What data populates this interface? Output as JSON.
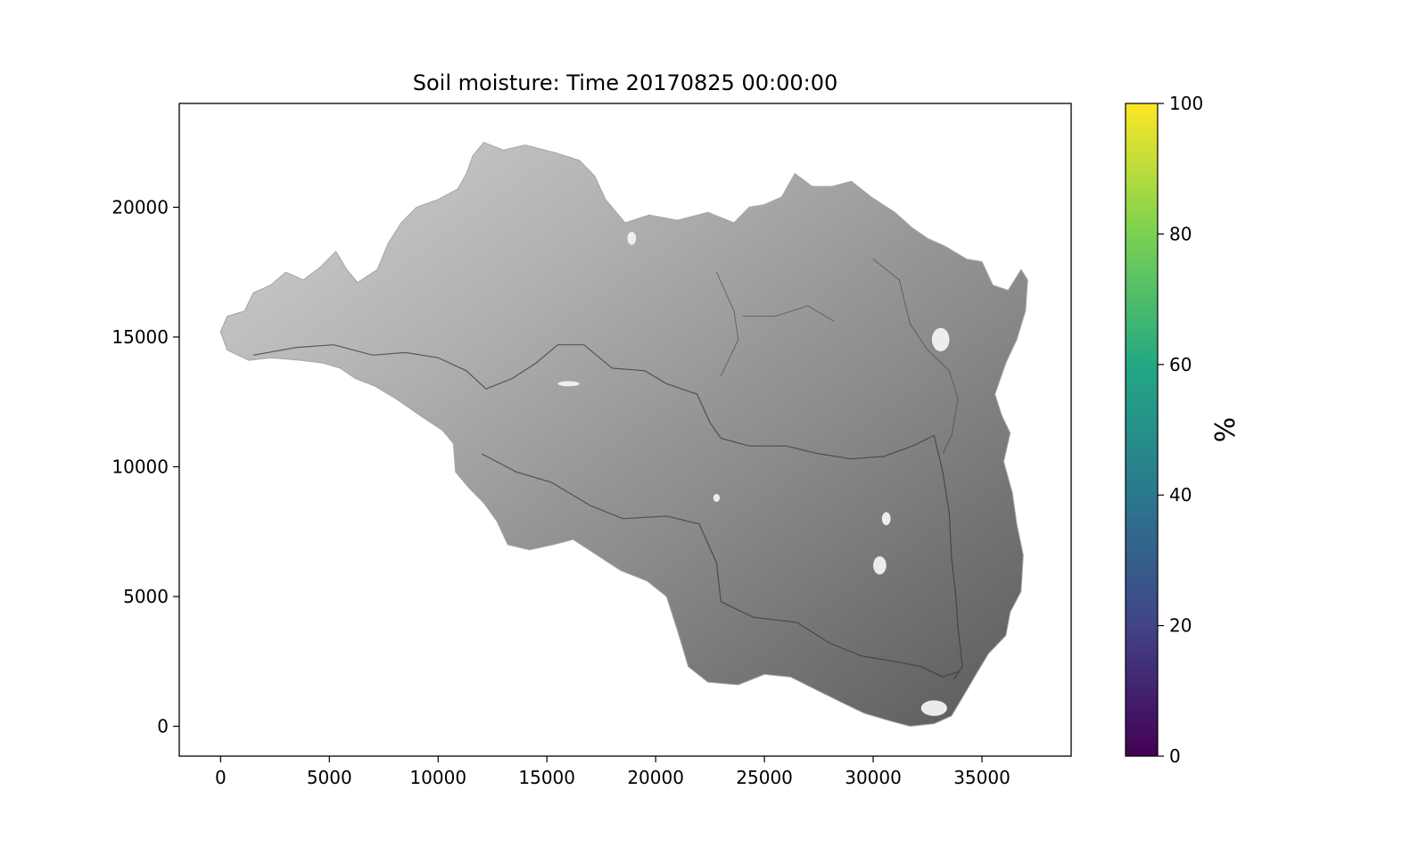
{
  "chart_data": {
    "type": "heatmap",
    "title": "Soil moisture: Time 20170825 00:00:00",
    "xlabel": "",
    "ylabel": "",
    "xlim": [
      -1900,
      39100
    ],
    "ylim": [
      -1150,
      24000
    ],
    "x_ticks": [
      0,
      5000,
      10000,
      15000,
      20000,
      25000,
      30000,
      35000
    ],
    "y_ticks": [
      0,
      5000,
      10000,
      15000,
      20000
    ],
    "colorbar": {
      "label": "%",
      "range": [
        0,
        100
      ],
      "ticks": [
        0,
        20,
        40,
        60,
        80,
        100
      ],
      "colormap": "viridis",
      "stops": [
        "#440154",
        "#414487",
        "#2a788e",
        "#22a884",
        "#7ad151",
        "#fde725"
      ]
    },
    "catchment_outline": [
      [
        0,
        15200
      ],
      [
        300,
        15800
      ],
      [
        1100,
        16000
      ],
      [
        1500,
        16700
      ],
      [
        2300,
        17000
      ],
      [
        3000,
        17500
      ],
      [
        3800,
        17200
      ],
      [
        4600,
        17700
      ],
      [
        5300,
        18300
      ],
      [
        5800,
        17600
      ],
      [
        6300,
        17100
      ],
      [
        7200,
        17600
      ],
      [
        7700,
        18600
      ],
      [
        8300,
        19400
      ],
      [
        9000,
        20000
      ],
      [
        10000,
        20300
      ],
      [
        10900,
        20700
      ],
      [
        11300,
        21300
      ],
      [
        11600,
        22000
      ],
      [
        12100,
        22500
      ],
      [
        13000,
        22200
      ],
      [
        14000,
        22400
      ],
      [
        15400,
        22100
      ],
      [
        16500,
        21800
      ],
      [
        17200,
        21200
      ],
      [
        17700,
        20300
      ],
      [
        18600,
        19400
      ],
      [
        19700,
        19700
      ],
      [
        21000,
        19500
      ],
      [
        22400,
        19800
      ],
      [
        23600,
        19400
      ],
      [
        24300,
        20000
      ],
      [
        25000,
        20100
      ],
      [
        25800,
        20400
      ],
      [
        26400,
        21300
      ],
      [
        27200,
        20800
      ],
      [
        28100,
        20800
      ],
      [
        29000,
        21000
      ],
      [
        29900,
        20400
      ],
      [
        31000,
        19800
      ],
      [
        31800,
        19200
      ],
      [
        32500,
        18800
      ],
      [
        33300,
        18500
      ],
      [
        34300,
        18000
      ],
      [
        35000,
        17900
      ],
      [
        35500,
        17000
      ],
      [
        36200,
        16800
      ],
      [
        36800,
        17600
      ],
      [
        37100,
        17200
      ],
      [
        37000,
        16000
      ],
      [
        36600,
        14900
      ],
      [
        36100,
        14000
      ],
      [
        35600,
        12800
      ],
      [
        35900,
        12000
      ],
      [
        36300,
        11300
      ],
      [
        36000,
        10200
      ],
      [
        36400,
        9000
      ],
      [
        36600,
        7800
      ],
      [
        36900,
        6600
      ],
      [
        36800,
        5200
      ],
      [
        36300,
        4400
      ],
      [
        36100,
        3500
      ],
      [
        35300,
        2800
      ],
      [
        34800,
        2100
      ],
      [
        34100,
        1100
      ],
      [
        33600,
        400
      ],
      [
        32800,
        100
      ],
      [
        31700,
        0
      ],
      [
        30800,
        200
      ],
      [
        29600,
        500
      ],
      [
        28600,
        900
      ],
      [
        27400,
        1400
      ],
      [
        26200,
        1900
      ],
      [
        25000,
        2000
      ],
      [
        23800,
        1600
      ],
      [
        22400,
        1700
      ],
      [
        21500,
        2300
      ],
      [
        21000,
        3700
      ],
      [
        20500,
        5000
      ],
      [
        19600,
        5600
      ],
      [
        18400,
        6000
      ],
      [
        17300,
        6600
      ],
      [
        16200,
        7200
      ],
      [
        15300,
        7000
      ],
      [
        14200,
        6800
      ],
      [
        13200,
        7000
      ],
      [
        12700,
        7900
      ],
      [
        12100,
        8600
      ],
      [
        11400,
        9200
      ],
      [
        10800,
        9800
      ],
      [
        10700,
        10900
      ],
      [
        10200,
        11400
      ],
      [
        9300,
        11900
      ],
      [
        8100,
        12600
      ],
      [
        7100,
        13100
      ],
      [
        6200,
        13400
      ],
      [
        5500,
        13800
      ],
      [
        4700,
        14000
      ],
      [
        3700,
        14100
      ],
      [
        2300,
        14200
      ],
      [
        1300,
        14100
      ],
      [
        300,
        14500
      ]
    ],
    "channel_lines": [
      [
        [
          1500,
          14300
        ],
        [
          3500,
          14600
        ],
        [
          5200,
          14700
        ],
        [
          7000,
          14300
        ],
        [
          8500,
          14400
        ],
        [
          10000,
          14200
        ],
        [
          11300,
          13700
        ],
        [
          12200,
          13000
        ],
        [
          13400,
          13400
        ],
        [
          14500,
          14000
        ],
        [
          15500,
          14700
        ],
        [
          16700,
          14700
        ],
        [
          18000,
          13800
        ],
        [
          19500,
          13700
        ],
        [
          20500,
          13200
        ],
        [
          21900,
          12800
        ],
        [
          22500,
          11700
        ],
        [
          23000,
          11100
        ],
        [
          24300,
          10800
        ],
        [
          26000,
          10800
        ],
        [
          27500,
          10500
        ],
        [
          29000,
          10300
        ],
        [
          30500,
          10400
        ],
        [
          31800,
          10800
        ],
        [
          32800,
          11200
        ],
        [
          33200,
          9800
        ],
        [
          33500,
          8200
        ],
        [
          33600,
          6500
        ],
        [
          33800,
          5000
        ],
        [
          33900,
          3800
        ],
        [
          34100,
          2300
        ],
        [
          33700,
          1800
        ]
      ],
      [
        [
          12000,
          10500
        ],
        [
          13600,
          9800
        ],
        [
          15200,
          9400
        ],
        [
          17000,
          8500
        ],
        [
          18500,
          8000
        ],
        [
          20500,
          8100
        ],
        [
          22000,
          7800
        ],
        [
          22800,
          6300
        ],
        [
          23000,
          4800
        ],
        [
          24500,
          4200
        ],
        [
          26500,
          4000
        ],
        [
          28000,
          3200
        ],
        [
          29500,
          2700
        ],
        [
          31000,
          2500
        ],
        [
          32200,
          2300
        ],
        [
          33200,
          1900
        ],
        [
          33900,
          2100
        ]
      ],
      [
        [
          30000,
          18000
        ],
        [
          31200,
          17200
        ],
        [
          31700,
          15500
        ],
        [
          32500,
          14500
        ],
        [
          33500,
          13700
        ],
        [
          33900,
          12600
        ],
        [
          33600,
          11200
        ],
        [
          33200,
          10500
        ]
      ],
      [
        [
          22800,
          17500
        ],
        [
          23600,
          16000
        ],
        [
          23800,
          14900
        ],
        [
          23000,
          13500
        ]
      ],
      [
        [
          24000,
          15800
        ],
        [
          25500,
          15800
        ],
        [
          27000,
          16200
        ],
        [
          28200,
          15600
        ]
      ]
    ],
    "wet_patches": [
      [
        33100,
        14900,
        400,
        450
      ],
      [
        18900,
        18800,
        200,
        250
      ],
      [
        32800,
        700,
        600,
        300
      ],
      [
        30300,
        6200,
        300,
        350
      ],
      [
        30600,
        8000,
        200,
        250
      ],
      [
        22800,
        8800,
        150,
        150
      ],
      [
        16000,
        13200,
        500,
        100
      ]
    ]
  }
}
